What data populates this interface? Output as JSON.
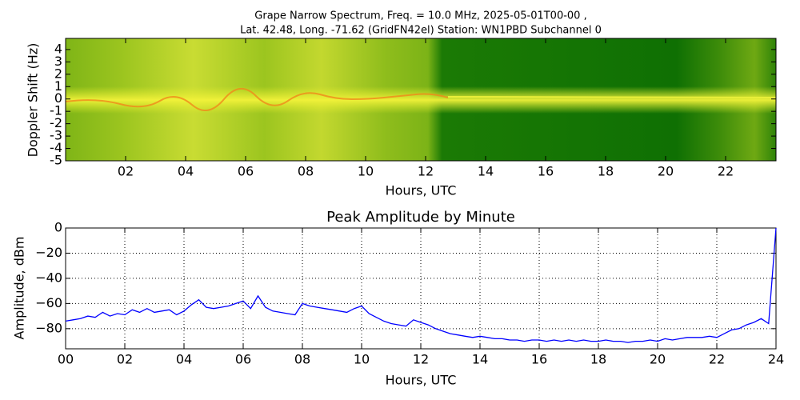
{
  "chart_data": [
    {
      "type": "heatmap",
      "title": "Grape Narrow Spectrum, Freq. = 10.0 MHz, 2025-05-01T00-00 ,",
      "subtitle": "Lat.  42.48, Long. -71.62 (GridFN42el) Station: WN1PBD Subchannel 0",
      "xlabel": "Hours, UTC",
      "ylabel": "Doppler Shift (Hz)",
      "xlim": [
        0,
        23.68
      ],
      "ylim": [
        -5,
        4.9
      ],
      "xticks": [
        {
          "value": 2,
          "label": "02"
        },
        {
          "value": 4,
          "label": "04"
        },
        {
          "value": 6,
          "label": "06"
        },
        {
          "value": 8,
          "label": "08"
        },
        10,
        12,
        14,
        16,
        18,
        20,
        22
      ],
      "yticks": [
        -5,
        -4,
        -3,
        -2,
        -1,
        0,
        1,
        2,
        3,
        4
      ]
    },
    {
      "type": "line",
      "title": "Peak Amplitude by Minute",
      "xlabel": "Hours, UTC",
      "ylabel": "Amplitude, dBm",
      "xlim": [
        0,
        24
      ],
      "ylim": [
        -96,
        0
      ],
      "grid": true,
      "xticks": [
        {
          "value": 0,
          "label": "00"
        },
        {
          "value": 2,
          "label": "02"
        },
        {
          "value": 4,
          "label": "04"
        },
        {
          "value": 6,
          "label": "06"
        },
        {
          "value": 8,
          "label": "08"
        },
        10,
        12,
        14,
        16,
        18,
        20,
        22,
        24
      ],
      "yticks": [
        {
          "value": -80,
          "label": "−80"
        },
        {
          "value": -60,
          "label": "−60"
        },
        {
          "value": -40,
          "label": "−40"
        },
        {
          "value": -20,
          "label": "−20"
        },
        0
      ],
      "x": [
        0,
        0.25,
        0.5,
        0.75,
        1,
        1.25,
        1.5,
        1.75,
        2,
        2.25,
        2.5,
        2.75,
        3,
        3.25,
        3.5,
        3.75,
        4,
        4.25,
        4.5,
        4.75,
        5,
        5.25,
        5.5,
        5.75,
        6,
        6.25,
        6.5,
        6.75,
        7,
        7.25,
        7.5,
        7.75,
        8,
        8.25,
        8.5,
        8.75,
        9,
        9.25,
        9.5,
        9.75,
        10,
        10.25,
        10.5,
        10.75,
        11,
        11.25,
        11.5,
        11.75,
        12,
        12.25,
        12.5,
        12.75,
        13,
        13.25,
        13.5,
        13.75,
        14,
        14.25,
        14.5,
        14.75,
        15,
        15.25,
        15.5,
        15.75,
        16,
        16.25,
        16.5,
        16.75,
        17,
        17.25,
        17.5,
        17.75,
        18,
        18.25,
        18.5,
        18.75,
        19,
        19.25,
        19.5,
        19.75,
        20,
        20.25,
        20.5,
        20.75,
        21,
        21.25,
        21.5,
        21.75,
        22,
        22.25,
        22.5,
        22.75,
        23,
        23.25,
        23.5,
        23.75,
        24
      ],
      "series": [
        {
          "color": "#0000ff",
          "values": [
            -74,
            -73,
            -72,
            -70,
            -71,
            -67,
            -70,
            -68,
            -69,
            -65,
            -67,
            -64,
            -67,
            -66,
            -65,
            -69,
            -66,
            -61,
            -57,
            -63,
            -64,
            -63,
            -62,
            -60,
            -58,
            -64,
            -54,
            -63,
            -66,
            -67,
            -68,
            -69,
            -60,
            -62,
            -63,
            -64,
            -65,
            -66,
            -67,
            -64,
            -62,
            -68,
            -71,
            -74,
            -76,
            -77,
            -78,
            -73,
            -75,
            -77,
            -80,
            -82,
            -84,
            -85,
            -86,
            -87,
            -86,
            -87,
            -88,
            -88,
            -89,
            -89,
            -90,
            -89,
            -89,
            -90,
            -89,
            -90,
            -89,
            -90,
            -89,
            -90,
            -90,
            -89,
            -90,
            -90,
            -91,
            -90,
            -90,
            -89,
            -90,
            -88,
            -89,
            -88,
            -87,
            -87,
            -87,
            -86,
            -87,
            -84,
            -81,
            -80,
            -77,
            -75,
            -72,
            -76,
            0
          ]
        }
      ]
    }
  ]
}
